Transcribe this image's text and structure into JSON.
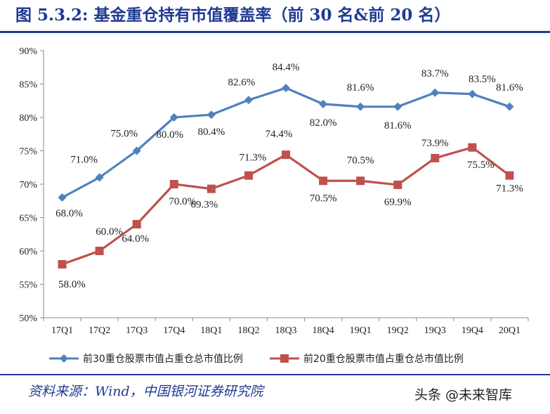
{
  "title": "图 5.3.2:  基金重仓持有市值覆盖率（前 30 名&前 20 名）",
  "source": "资料来源：Wind，中国银河证券研究院",
  "watermark": "头条 @未来智库",
  "colors": {
    "title": "#1f3a93",
    "series1": "#4f81bd",
    "series2": "#c0504d"
  },
  "chart_data": {
    "type": "line",
    "title": "图 5.3.2:  基金重仓持有市值覆盖率（前 30 名&前 20 名）",
    "x": [
      "17Q1",
      "17Q2",
      "17Q3",
      "17Q4",
      "18Q1",
      "18Q2",
      "18Q3",
      "18Q4",
      "19Q1",
      "19Q2",
      "19Q3",
      "19Q4",
      "20Q1"
    ],
    "ylim": [
      50,
      90
    ],
    "yticks": [
      "50%",
      "55%",
      "60%",
      "65%",
      "70%",
      "75%",
      "80%",
      "85%",
      "90%"
    ],
    "grid": false,
    "legend_position": "bottom",
    "series": [
      {
        "name": "前30重仓股票市值占重仓总市值比例",
        "marker": "diamond",
        "values": [
          68.0,
          71.0,
          75.0,
          80.0,
          80.4,
          82.6,
          84.4,
          82.0,
          81.6,
          81.6,
          83.7,
          83.5,
          81.6
        ],
        "labels": [
          "68.0%",
          "71.0%",
          "75.0%",
          "80.0%",
          "80.4%",
          "82.6%",
          "84.4%",
          "82.0%",
          "81.6%",
          "81.6%",
          "83.7%",
          "83.5%",
          "81.6%"
        ]
      },
      {
        "name": "前20重仓股票市值占重仓总市值比例",
        "marker": "square",
        "values": [
          58.0,
          60.0,
          64.0,
          70.0,
          69.3,
          71.3,
          74.4,
          70.5,
          70.5,
          69.9,
          73.9,
          75.5,
          71.3
        ],
        "labels": [
          "58.0%",
          "60.0%",
          "64.0%",
          "70.0%",
          "69.3%",
          "71.3%",
          "74.4%",
          "70.5%",
          "70.5%",
          "69.9%",
          "73.9%",
          "75.5%",
          "71.3%"
        ]
      }
    ]
  }
}
